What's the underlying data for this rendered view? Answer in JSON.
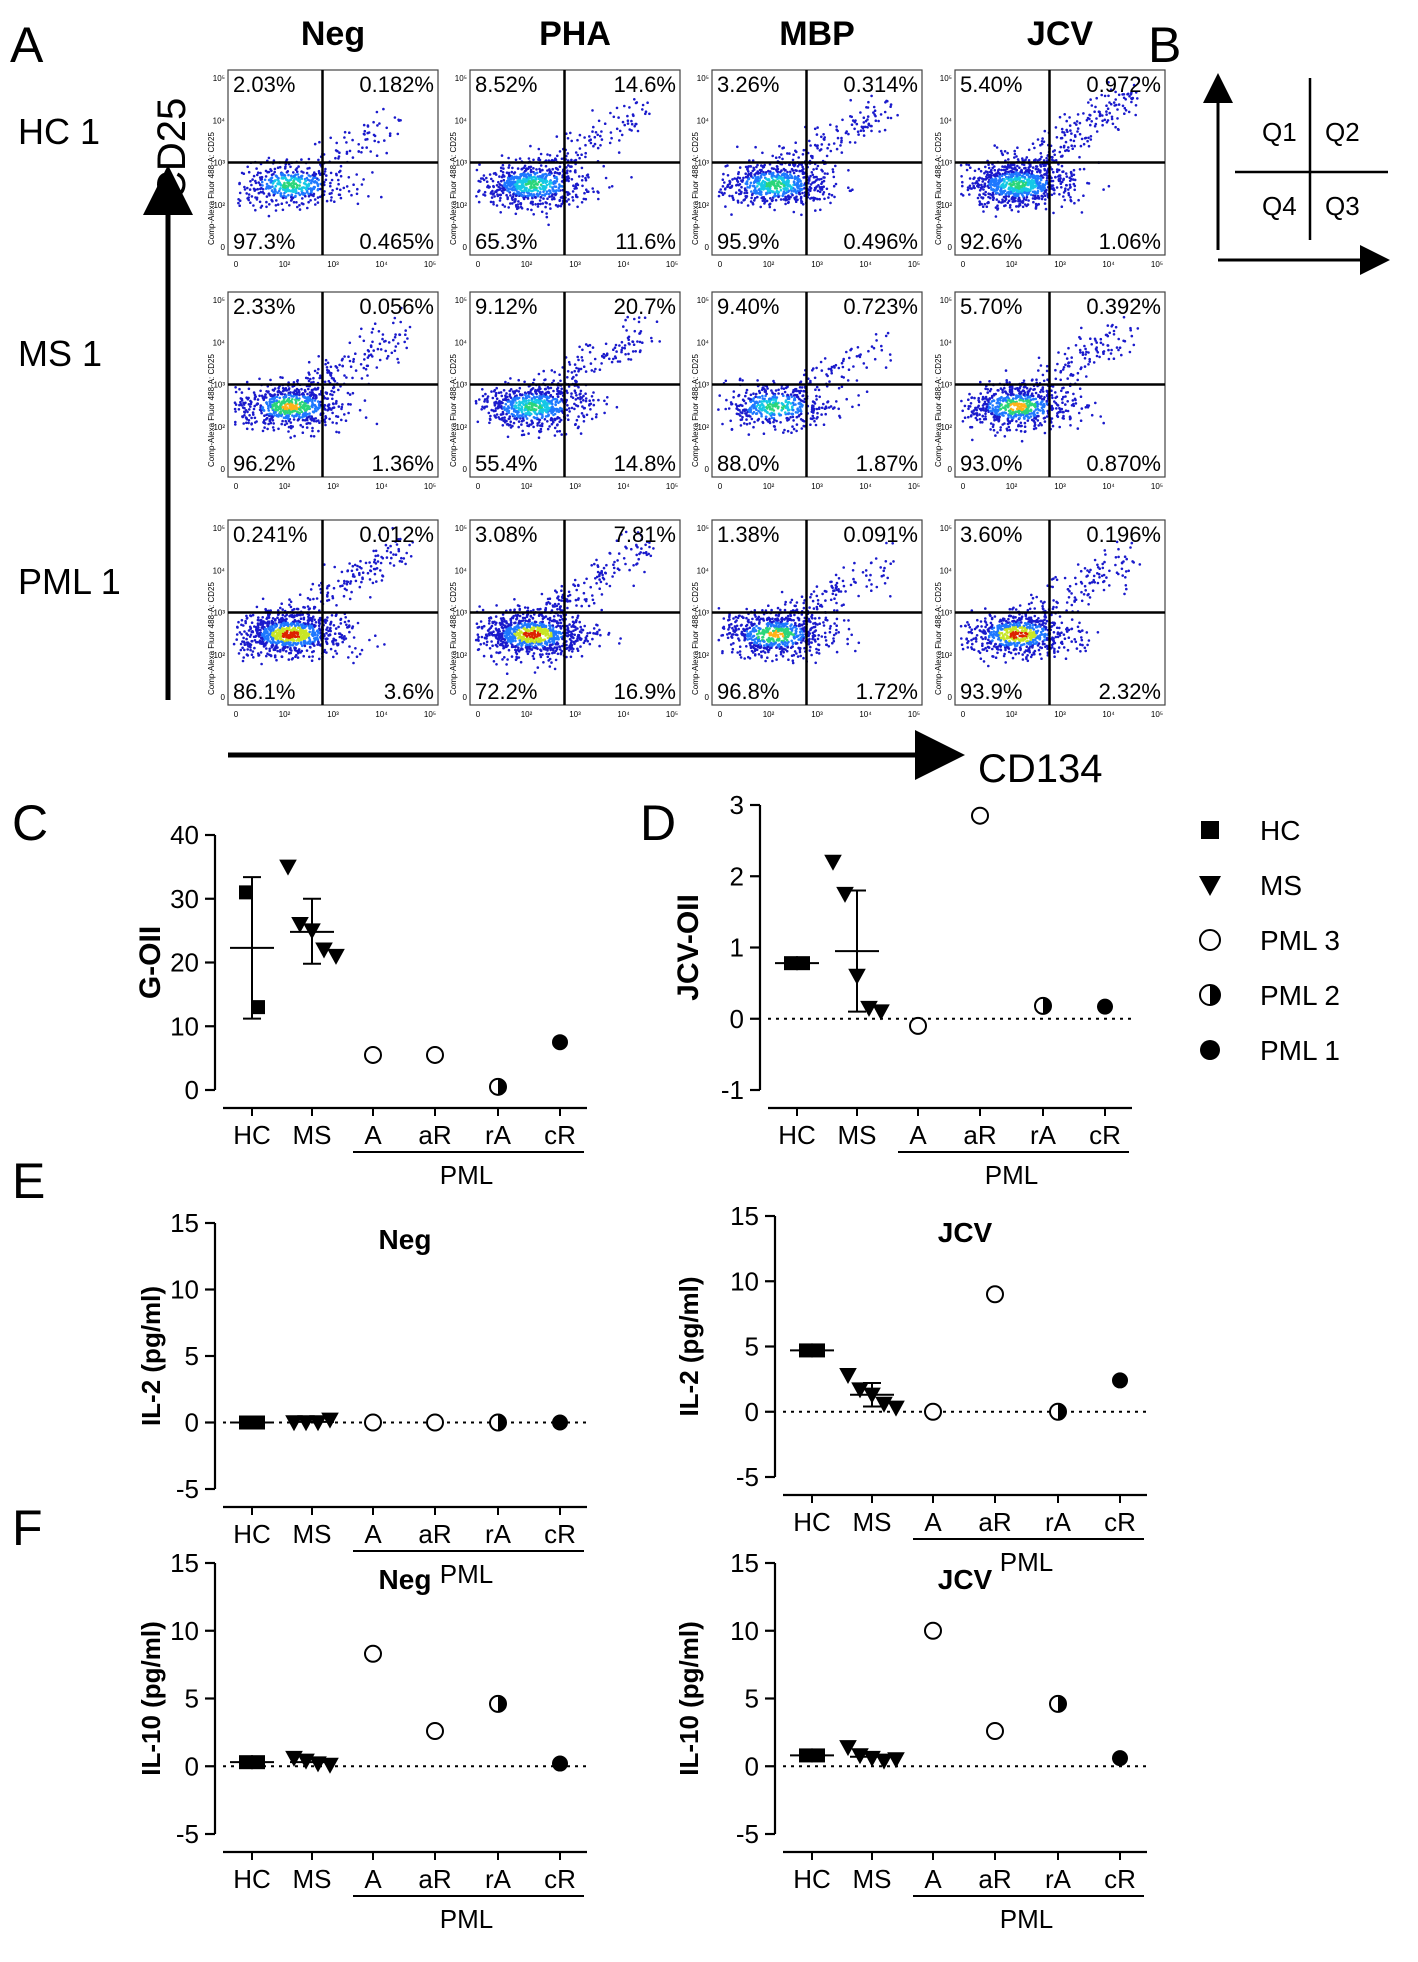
{
  "panel_labels": {
    "A": "A",
    "B": "B",
    "C": "C",
    "D": "D",
    "E": "E",
    "F": "F"
  },
  "flow": {
    "columns": [
      "Neg",
      "PHA",
      "MBP",
      "JCV"
    ],
    "rows": [
      "HC 1",
      "MS 1",
      "PML 1"
    ],
    "y_marker": "CD25",
    "x_marker": "CD134",
    "axis_tick_labels": [
      "0",
      "10²",
      "10³",
      "10⁴",
      "10⁵"
    ],
    "channel_label": "Comp-Alexa Fluor 488-A: CD25",
    "quadrants": [
      [
        {
          "q1": "2.03%",
          "q2": "0.182%",
          "q4": "97.3%",
          "q3": "0.465%",
          "load": 1,
          "hot": 0
        },
        {
          "q1": "8.52%",
          "q2": "14.6%",
          "q4": "65.3%",
          "q3": "11.6%",
          "load": 2,
          "hot": 0
        },
        {
          "q1": "3.26%",
          "q2": "0.314%",
          "q4": "95.9%",
          "q3": "0.496%",
          "load": 2,
          "hot": 0
        },
        {
          "q1": "5.40%",
          "q2": "0.972%",
          "q4": "92.6%",
          "q3": "1.06%",
          "load": 3,
          "hot": 0
        }
      ],
      [
        {
          "q1": "2.33%",
          "q2": "0.056%",
          "q4": "96.2%",
          "q3": "1.36%",
          "load": 2,
          "hot": 1
        },
        {
          "q1": "9.12%",
          "q2": "20.7%",
          "q4": "55.4%",
          "q3": "14.8%",
          "load": 2,
          "hot": 0
        },
        {
          "q1": "9.40%",
          "q2": "0.723%",
          "q4": "88.0%",
          "q3": "1.87%",
          "load": 1,
          "hot": 0
        },
        {
          "q1": "5.70%",
          "q2": "0.392%",
          "q4": "93.0%",
          "q3": "0.870%",
          "load": 2,
          "hot": 1
        }
      ],
      [
        {
          "q1": "0.241%",
          "q2": "0.012%",
          "q4": "86.1%",
          "q3": "3.6%",
          "load": 3,
          "hot": 2
        },
        {
          "q1": "3.08%",
          "q2": "7.81%",
          "q4": "72.2%",
          "q3": "16.9%",
          "load": 3,
          "hot": 2
        },
        {
          "q1": "1.38%",
          "q2": "0.091%",
          "q4": "96.8%",
          "q3": "1.72%",
          "load": 2,
          "hot": 1
        },
        {
          "q1": "3.60%",
          "q2": "0.196%",
          "q4": "93.9%",
          "q3": "2.32%",
          "load": 2,
          "hot": 2
        }
      ]
    ]
  },
  "quadrant_key": {
    "q1": "Q1",
    "q2": "Q2",
    "q3": "Q3",
    "q4": "Q4"
  },
  "legend": {
    "colors": {
      "black": "#000000",
      "cold": "#1a1acc",
      "warm": "#dd2200"
    },
    "items": [
      {
        "label": "HC",
        "marker": "square"
      },
      {
        "label": "MS",
        "marker": "triangle-down"
      },
      {
        "label": "PML 3",
        "marker": "circle-open"
      },
      {
        "label": "PML 2",
        "marker": "circle-half"
      },
      {
        "label": "PML 1",
        "marker": "circle-filled"
      }
    ]
  },
  "chart_data": [
    {
      "id": "C",
      "type": "scatter",
      "title": "",
      "ylabel": "G-OII",
      "ylim": [
        0,
        40
      ],
      "yticks": [
        0,
        10,
        20,
        30,
        40
      ],
      "categories": [
        "HC",
        "MS",
        "A",
        "aR",
        "rA",
        "cR"
      ],
      "group_label": "PML",
      "zero_line": false,
      "series": [
        {
          "name": "HC",
          "marker": "square",
          "points": [
            {
              "cat": "HC",
              "y": 31
            },
            {
              "cat": "HC",
              "y": 13
            }
          ],
          "mean": 22.3,
          "sd_low": 11.2,
          "sd_high": 33.4
        },
        {
          "name": "MS",
          "marker": "triangle-down",
          "points": [
            {
              "cat": "MS",
              "y": 35
            },
            {
              "cat": "MS",
              "y": 26
            },
            {
              "cat": "MS",
              "y": 25
            },
            {
              "cat": "MS",
              "y": 22
            },
            {
              "cat": "MS",
              "y": 21
            }
          ],
          "mean": 24.8,
          "sd_low": 19.8,
          "sd_high": 30.0
        },
        {
          "name": "PML 3",
          "marker": "circle-open",
          "points": [
            {
              "cat": "A",
              "y": 5.5
            },
            {
              "cat": "aR",
              "y": 5.5
            }
          ]
        },
        {
          "name": "PML 2",
          "marker": "circle-half",
          "points": [
            {
              "cat": "rA",
              "y": 0.5
            }
          ]
        },
        {
          "name": "PML 1",
          "marker": "circle-filled",
          "points": [
            {
              "cat": "cR",
              "y": 7.5
            }
          ]
        }
      ]
    },
    {
      "id": "D",
      "type": "scatter",
      "title": "",
      "ylabel": "JCV-OII",
      "ylim": [
        -1,
        3
      ],
      "yticks": [
        -1,
        0,
        1,
        2,
        3
      ],
      "categories": [
        "HC",
        "MS",
        "A",
        "aR",
        "rA",
        "cR"
      ],
      "group_label": "PML",
      "zero_line": true,
      "series": [
        {
          "name": "HC",
          "marker": "square",
          "points": [
            {
              "cat": "HC",
              "y": 0.78
            },
            {
              "cat": "HC",
              "y": 0.78
            }
          ],
          "mean": 0.78
        },
        {
          "name": "MS",
          "marker": "triangle-down",
          "points": [
            {
              "cat": "MS",
              "y": 2.2
            },
            {
              "cat": "MS",
              "y": 1.75
            },
            {
              "cat": "MS",
              "y": 0.6
            },
            {
              "cat": "MS",
              "y": 0.15
            },
            {
              "cat": "MS",
              "y": 0.1
            }
          ],
          "mean": 0.95,
          "sd_low": 0.1,
          "sd_high": 1.8
        },
        {
          "name": "PML 3",
          "marker": "circle-open",
          "points": [
            {
              "cat": "A",
              "y": -0.1
            },
            {
              "cat": "aR",
              "y": 2.85
            }
          ]
        },
        {
          "name": "PML 2",
          "marker": "circle-half",
          "points": [
            {
              "cat": "rA",
              "y": 0.18
            }
          ]
        },
        {
          "name": "PML 1",
          "marker": "circle-filled",
          "points": [
            {
              "cat": "cR",
              "y": 0.17
            }
          ]
        }
      ]
    },
    {
      "id": "E-left",
      "type": "scatter",
      "title": "Neg",
      "ylabel": "IL-2 (pg/ml)",
      "ylim": [
        -5,
        15
      ],
      "yticks": [
        -5,
        0,
        5,
        10,
        15
      ],
      "categories": [
        "HC",
        "MS",
        "A",
        "aR",
        "rA",
        "cR"
      ],
      "group_label": "PML",
      "zero_line": true,
      "series": [
        {
          "name": "HC",
          "marker": "square",
          "points": [
            {
              "cat": "HC",
              "y": 0
            },
            {
              "cat": "HC",
              "y": 0
            }
          ],
          "mean": 0
        },
        {
          "name": "MS",
          "marker": "triangle-down",
          "points": [
            {
              "cat": "MS",
              "y": 0
            },
            {
              "cat": "MS",
              "y": 0
            },
            {
              "cat": "MS",
              "y": 0
            },
            {
              "cat": "MS",
              "y": 0.2
            }
          ],
          "mean": 0.05
        },
        {
          "name": "PML 3",
          "marker": "circle-open",
          "points": [
            {
              "cat": "A",
              "y": 0
            },
            {
              "cat": "aR",
              "y": 0
            }
          ]
        },
        {
          "name": "PML 2",
          "marker": "circle-half",
          "points": [
            {
              "cat": "rA",
              "y": 0
            }
          ]
        },
        {
          "name": "PML 1",
          "marker": "circle-filled",
          "points": [
            {
              "cat": "cR",
              "y": 0
            }
          ]
        }
      ]
    },
    {
      "id": "E-right",
      "type": "scatter",
      "title": "JCV",
      "ylabel": "IL-2 (pg/ml)",
      "ylim": [
        -5,
        15
      ],
      "yticks": [
        -5,
        0,
        5,
        10,
        15
      ],
      "categories": [
        "HC",
        "MS",
        "A",
        "aR",
        "rA",
        "cR"
      ],
      "group_label": "PML",
      "zero_line": true,
      "series": [
        {
          "name": "HC",
          "marker": "square",
          "points": [
            {
              "cat": "HC",
              "y": 4.7
            },
            {
              "cat": "HC",
              "y": 4.7
            }
          ],
          "mean": 4.7
        },
        {
          "name": "MS",
          "marker": "triangle-down",
          "points": [
            {
              "cat": "MS",
              "y": 2.8
            },
            {
              "cat": "MS",
              "y": 1.7
            },
            {
              "cat": "MS",
              "y": 1.3
            },
            {
              "cat": "MS",
              "y": 0.6
            },
            {
              "cat": "MS",
              "y": 0.3
            }
          ],
          "mean": 1.3,
          "sd_low": 0.4,
          "sd_high": 2.2
        },
        {
          "name": "PML 3",
          "marker": "circle-open",
          "points": [
            {
              "cat": "A",
              "y": 0
            },
            {
              "cat": "aR",
              "y": 9.0
            }
          ]
        },
        {
          "name": "PML 2",
          "marker": "circle-half",
          "points": [
            {
              "cat": "rA",
              "y": 0
            }
          ]
        },
        {
          "name": "PML 1",
          "marker": "circle-filled",
          "points": [
            {
              "cat": "cR",
              "y": 2.4
            }
          ]
        }
      ]
    },
    {
      "id": "F-left",
      "type": "scatter",
      "title": "Neg",
      "ylabel": "IL-10 (pg/ml)",
      "ylim": [
        -5,
        15
      ],
      "yticks": [
        -5,
        0,
        5,
        10,
        15
      ],
      "categories": [
        "HC",
        "MS",
        "A",
        "aR",
        "rA",
        "cR"
      ],
      "group_label": "PML",
      "zero_line": true,
      "series": [
        {
          "name": "HC",
          "marker": "square",
          "points": [
            {
              "cat": "HC",
              "y": 0.3
            },
            {
              "cat": "HC",
              "y": 0.3
            }
          ],
          "mean": 0.3
        },
        {
          "name": "MS",
          "marker": "triangle-down",
          "points": [
            {
              "cat": "MS",
              "y": 0.6
            },
            {
              "cat": "MS",
              "y": 0.4
            },
            {
              "cat": "MS",
              "y": 0.2
            },
            {
              "cat": "MS",
              "y": 0.1
            }
          ],
          "mean": 0.3
        },
        {
          "name": "PML 3",
          "marker": "circle-open",
          "points": [
            {
              "cat": "A",
              "y": 8.3
            },
            {
              "cat": "aR",
              "y": 2.6
            }
          ]
        },
        {
          "name": "PML 2",
          "marker": "circle-half",
          "points": [
            {
              "cat": "rA",
              "y": 4.6
            }
          ]
        },
        {
          "name": "PML 1",
          "marker": "circle-filled",
          "points": [
            {
              "cat": "cR",
              "y": 0.2
            }
          ]
        }
      ]
    },
    {
      "id": "F-right",
      "type": "scatter",
      "title": "JCV",
      "ylabel": "IL-10 (pg/ml)",
      "ylim": [
        -5,
        15
      ],
      "yticks": [
        -5,
        0,
        5,
        10,
        15
      ],
      "categories": [
        "HC",
        "MS",
        "A",
        "aR",
        "rA",
        "cR"
      ],
      "group_label": "PML",
      "zero_line": true,
      "series": [
        {
          "name": "HC",
          "marker": "square",
          "points": [
            {
              "cat": "HC",
              "y": 0.8
            },
            {
              "cat": "HC",
              "y": 0.8
            }
          ],
          "mean": 0.8
        },
        {
          "name": "MS",
          "marker": "triangle-down",
          "points": [
            {
              "cat": "MS",
              "y": 1.4
            },
            {
              "cat": "MS",
              "y": 0.8
            },
            {
              "cat": "MS",
              "y": 0.6
            },
            {
              "cat": "MS",
              "y": 0.4
            },
            {
              "cat": "MS",
              "y": 0.5
            }
          ],
          "mean": 0.7
        },
        {
          "name": "PML 3",
          "marker": "circle-open",
          "points": [
            {
              "cat": "A",
              "y": 10.0
            },
            {
              "cat": "aR",
              "y": 2.6
            }
          ]
        },
        {
          "name": "PML 2",
          "marker": "circle-half",
          "points": [
            {
              "cat": "rA",
              "y": 4.6
            }
          ]
        },
        {
          "name": "PML 1",
          "marker": "circle-filled",
          "points": [
            {
              "cat": "cR",
              "y": 0.6
            }
          ]
        }
      ]
    }
  ]
}
